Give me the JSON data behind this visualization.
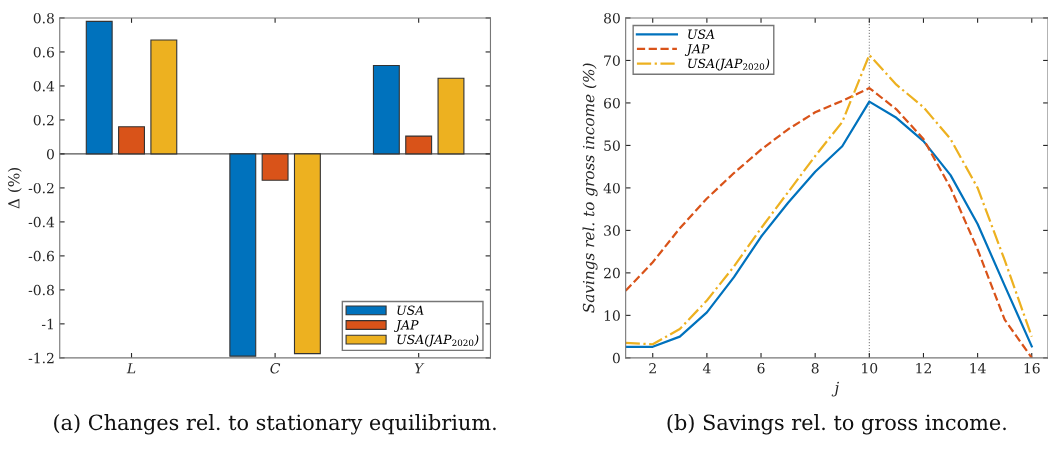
{
  "chart_data": [
    {
      "type": "bar",
      "ylabel": "Δ (%)",
      "categories": [
        "L",
        "C",
        "Y"
      ],
      "series": [
        {
          "name": "USA",
          "color": "#0072bd",
          "values": [
            0.78,
            -1.19,
            0.52
          ]
        },
        {
          "name": "JAP",
          "color": "#d95319",
          "values": [
            0.16,
            -0.155,
            0.105
          ]
        },
        {
          "name": "USA(JAP$_{2020}$)",
          "color": "#edb120",
          "values": [
            0.67,
            -1.175,
            0.445
          ]
        }
      ],
      "ylim": [
        -1.2,
        0.8
      ],
      "yticks": [
        -1.2,
        -1,
        -0.8,
        -0.6,
        -0.4,
        -0.2,
        0,
        0.2,
        0.4,
        0.6,
        0.8
      ],
      "grid": false,
      "legend": "bottom right",
      "ref_lines": [
        {
          "axis": "y",
          "value": 0,
          "color": "#555555",
          "line_style": "solid"
        }
      ],
      "annotations": [
        "(a) Changes rel. to stationary equilibrium."
      ]
    },
    {
      "type": "line",
      "xlabel": "j",
      "ylabel": "Savings rel. to gross income (%)",
      "x": [
        1,
        2,
        3,
        4,
        5,
        6,
        7,
        8,
        9,
        10,
        11,
        12,
        13,
        14,
        15,
        16
      ],
      "series": [
        {
          "name": "USA",
          "color": "#0072bd",
          "line_style": "solid",
          "values": [
            2.6,
            2.6,
            5,
            10.7,
            19,
            28.5,
            36.5,
            43.8,
            49.8,
            60.3,
            56.5,
            51,
            43,
            31.5,
            17,
            2.7
          ]
        },
        {
          "name": "JAP",
          "color": "#d95319",
          "line_style": "dashed",
          "values": [
            15.8,
            22.5,
            30.5,
            37.5,
            43.5,
            49,
            53.8,
            57.8,
            60.5,
            63.5,
            58.5,
            51.5,
            40,
            25.5,
            9,
            0
          ]
        },
        {
          "name": "USA(JAP$_{2020}$)",
          "color": "#edb120",
          "line_style": "dashdot",
          "values": [
            3.5,
            3.2,
            6.8,
            13.5,
            21.5,
            30.5,
            39,
            47.5,
            55.5,
            71.3,
            64.3,
            59,
            51.5,
            40,
            23,
            5
          ]
        }
      ],
      "xlim": [
        1,
        16.6
      ],
      "xticks": [
        2,
        4,
        6,
        8,
        10,
        12,
        14,
        16
      ],
      "ylim": [
        0,
        80
      ],
      "yticks": [
        0,
        10,
        20,
        30,
        40,
        50,
        60,
        70,
        80
      ],
      "grid": false,
      "legend": "top left",
      "ref_lines": [
        {
          "axis": "x",
          "value": 10,
          "color": "#808080",
          "line_style": "dotted"
        }
      ],
      "annotations": [
        "(b) Savings rel. to gross income."
      ]
    }
  ]
}
